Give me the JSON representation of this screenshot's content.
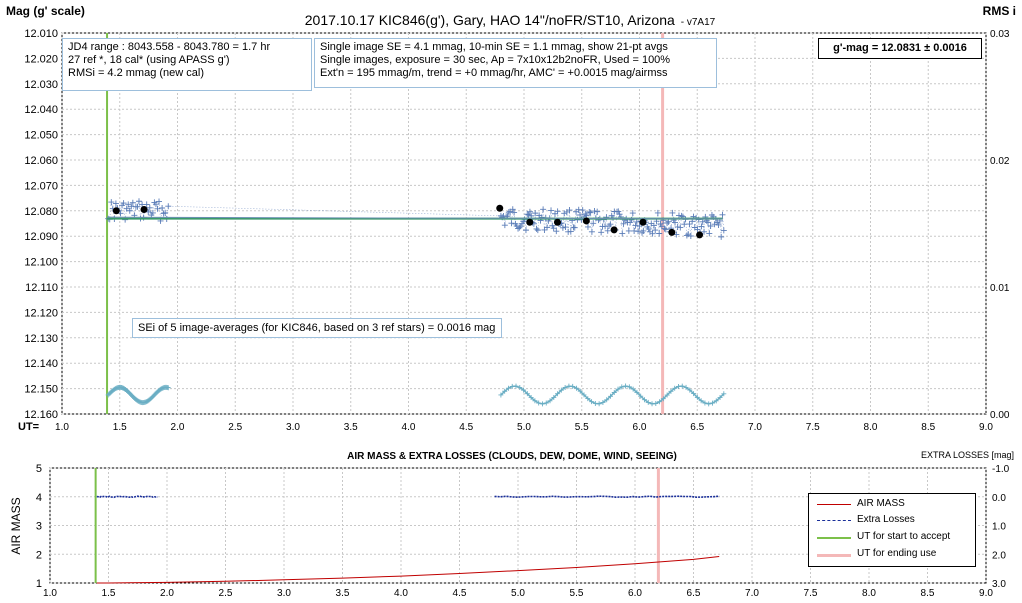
{
  "top_chart": {
    "title": "2017.10.17  KIC846(g'), Gary, HAO 14\"/noFR/ST10, Arizona",
    "version": "- v7A17",
    "ylabel_left": "Mag (g' scale)",
    "ylabel_right": "RMS i",
    "xlabel": "UT=",
    "info_box_1": [
      "JD4 range : 8043.558 - 8043.780 =  1.7  hr",
      "27 ref *, 18 cal* (using APASS g')",
      "RMSi = 4.2 mmag (new cal)"
    ],
    "info_box_2": [
      "Single image SE = 4.1 mmag, 10-min SE = 1.1 mmag, show 21-pt avgs",
      "Single images, exposure = 30 sec, Ap = 7x10x12b2noFR, Used = 100%",
      "Ext'n = 195 mmag/m, trend = +0 mmag/hr, AMC' = +0.0015 mag/airmss"
    ],
    "result_box": "g'-mag = 12.0831 ± 0.0016",
    "sei_box": "SEi of 5 image-averages (for KIC846, based on 3 ref stars) = 0.0016 mag"
  },
  "bottom_chart": {
    "title": "AIR MASS & EXTRA LOSSES (CLOUDS, DEW, DOME, WIND, SEEING)",
    "ylabel_left": "AIR MASS",
    "ylabel_right": "EXTRA LOSSES [mag]",
    "legend": [
      "AIR MASS",
      "Extra Losses",
      "UT for start to accept",
      "UT for ending use"
    ]
  },
  "colors": {
    "points": "#5b7db8",
    "fit_line": "#3a9a6a",
    "avg_points": "#000000",
    "rms_trace": "#6aaec4",
    "start_line": "#7cc04a",
    "end_line": "#f4b8b8",
    "airmass": "#c00000",
    "extra_losses": "#1a2f9a"
  },
  "chart_data": [
    {
      "type": "scatter",
      "x_range": [
        1.0,
        9.0
      ],
      "x_ticks": [
        "1.0",
        "1.5",
        "2.0",
        "2.5",
        "3.0",
        "3.5",
        "4.0",
        "4.5",
        "5.0",
        "5.5",
        "6.0",
        "6.5",
        "7.0",
        "7.5",
        "8.0",
        "8.5",
        "9.0"
      ],
      "y_range": [
        12.16,
        12.01
      ],
      "y_inverted": true,
      "y_ticks": [
        "12.010",
        "12.020",
        "12.030",
        "12.040",
        "12.050",
        "12.060",
        "12.070",
        "12.080",
        "12.090",
        "12.100",
        "12.110",
        "12.120",
        "12.130",
        "12.140",
        "12.150",
        "12.160"
      ],
      "y2_range": [
        0.0,
        0.03
      ],
      "y2_ticks": [
        "0.03",
        "0.02",
        "0.01",
        "0.00"
      ],
      "grid": true,
      "ut_start": 1.39,
      "ut_end": 6.2,
      "fit_mag": 12.0831,
      "trend_segment": {
        "x": [
          1.39,
          6.72
        ],
        "y": [
          12.0825,
          12.0832
        ]
      },
      "averages": {
        "x": [
          1.47,
          1.71,
          4.79,
          5.05,
          5.29,
          5.54,
          5.78,
          6.03,
          6.28,
          6.52
        ],
        "y": [
          12.08,
          12.0795,
          12.079,
          12.0845,
          12.0845,
          12.084,
          12.0875,
          12.0845,
          12.0885,
          12.0895
        ]
      },
      "segments": [
        {
          "x0": 1.4,
          "x1": 1.92,
          "base": 12.08,
          "slope": 0.0,
          "scatter": 0.004,
          "n": 40
        },
        {
          "x0": 4.8,
          "x1": 6.73,
          "base": 12.083,
          "slope": 0.003,
          "scatter": 0.0045,
          "n": 170
        }
      ],
      "rms_segments": [
        {
          "x0": 1.4,
          "x1": 1.92,
          "level": 0.0015,
          "amp": 0.0006,
          "period": 0.4
        },
        {
          "x0": 4.8,
          "x1": 6.73,
          "level": 0.0015,
          "amp": 0.0007,
          "period": 0.48
        }
      ]
    },
    {
      "type": "line",
      "x_range": [
        1.0,
        9.0
      ],
      "x_ticks": [
        "1.0",
        "1.5",
        "2.0",
        "2.5",
        "3.0",
        "3.5",
        "4.0",
        "4.5",
        "5.0",
        "5.5",
        "6.0",
        "6.5",
        "7.0",
        "7.5",
        "8.0",
        "8.5",
        "9.0"
      ],
      "y_range": [
        1,
        5
      ],
      "y_ticks": [
        "1",
        "2",
        "3",
        "4",
        "5"
      ],
      "y2_range": [
        3.0,
        -1.0
      ],
      "y2_ticks": [
        "-1.0",
        "0.0",
        "1.0",
        "2.0",
        "3.0"
      ],
      "grid": true,
      "legend_position": "right",
      "series": [
        {
          "name": "AIR MASS",
          "x": [
            1.4,
            1.5,
            2.0,
            2.5,
            3.0,
            3.5,
            4.0,
            4.5,
            5.0,
            5.5,
            6.0,
            6.5,
            6.72
          ],
          "y": [
            1.0,
            1.0,
            1.02,
            1.06,
            1.11,
            1.17,
            1.24,
            1.33,
            1.43,
            1.54,
            1.67,
            1.82,
            1.92
          ]
        },
        {
          "name": "Extra Losses",
          "x": [
            1.4,
            1.92,
            4.8,
            6.72
          ],
          "y": [
            0.0,
            0.0,
            0.0,
            0.0
          ]
        }
      ]
    }
  ]
}
